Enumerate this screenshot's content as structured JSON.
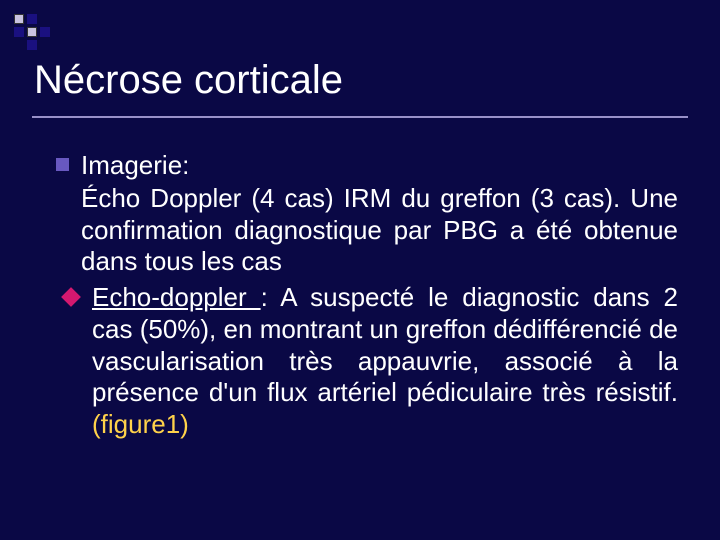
{
  "slide": {
    "title": "Nécrose corticale",
    "background_color": "#0a0845",
    "title_color": "#ffffff",
    "title_fontsize": 40,
    "underline_color": "#9890c8",
    "bullet_color": "#6858c0",
    "diamond_color": "#d4186f",
    "figure_ref_color": "#ffd24a",
    "text_color": "#ffffff",
    "body_fontsize": 26
  },
  "content": {
    "heading": "Imagerie:",
    "paragraph": " Écho Doppler (4 cas) IRM du greffon (3 cas). Une confirmation diagnostique par PBG a été obtenue dans tous les cas",
    "sub": {
      "label": "Echo-doppler ",
      "separator": ": ",
      "text": "A suspecté le diagnostic dans 2 cas (50%), en montrant un greffon dédifférencié de vascularisation très appauvrie, associé à la présence d'un flux artériel pédiculaire très résistif.",
      "figure_ref": "(figure1)"
    }
  }
}
